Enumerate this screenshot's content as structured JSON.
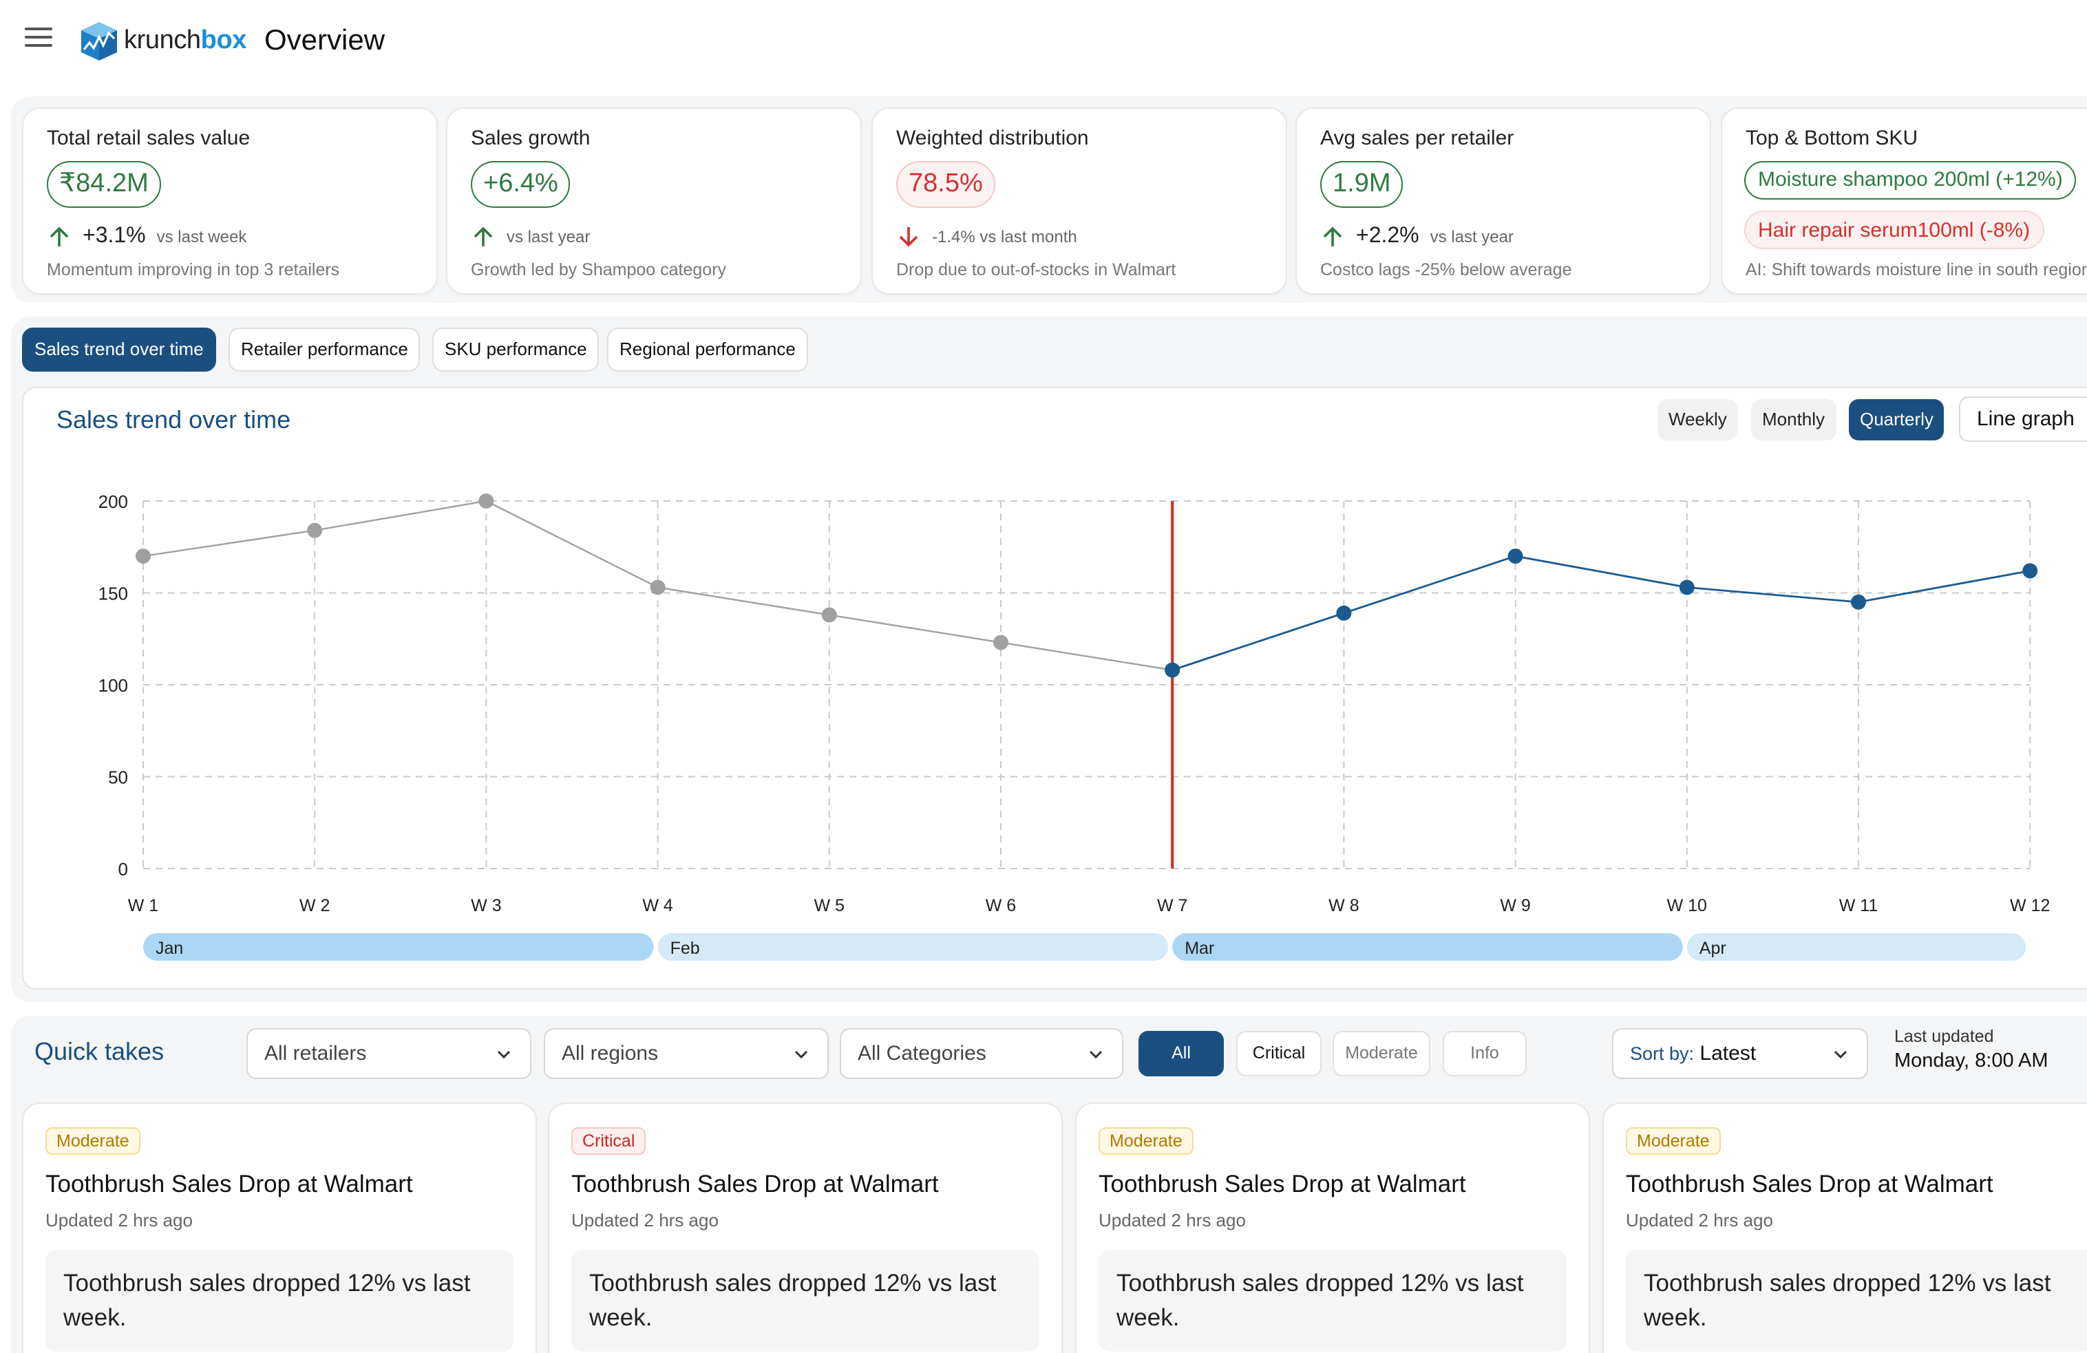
{
  "app": {
    "brand_part1": "krunch",
    "brand_part2": "box",
    "page_title": "Overview"
  },
  "colors": {
    "primary": "#1a4f80",
    "brand_blue": "#1b8fd6",
    "positive": "#2f7a40",
    "negative": "#d2322d",
    "series_past": "#a0a0a0",
    "series_current": "#1a5a8e",
    "marker_line": "#d22a22"
  },
  "kpis": {
    "total": {
      "label": "Total retail sales value",
      "value": "₹84.2M",
      "delta": "+3.1%",
      "delta_label": "vs last week",
      "note": "Momentum improving in top 3 retailers",
      "direction": "up"
    },
    "growth": {
      "label": "Sales growth",
      "value": "+6.4%",
      "delta_label": "vs last year",
      "note": "Growth led by Shampoo category",
      "direction": "up"
    },
    "distribution": {
      "label": "Weighted distribution",
      "value": "78.5%",
      "delta_label": "-1.4% vs last month",
      "note": "Drop due to out-of-stocks in Walmart",
      "direction": "down"
    },
    "avg": {
      "label": "Avg sales per retailer",
      "value": "1.9M",
      "delta": "+2.2%",
      "delta_label": "vs last year",
      "note": "Costco lags -25% below average",
      "direction": "up"
    },
    "sku": {
      "label": "Top & Bottom SKU",
      "top": "Moisture shampoo 200ml (+12%)",
      "bottom": "Hair repair serum100ml (-8%)",
      "note": "AI: Shift towards moisture line in south region"
    }
  },
  "tabs": {
    "sales_trend": "Sales trend over time",
    "retailer": "Retailer performance",
    "sku": "SKU performance",
    "regional": "Regional performance"
  },
  "chart_panel": {
    "title": "Sales trend over time",
    "periods": {
      "weekly": "Weekly",
      "monthly": "Monthly",
      "quarterly": "Quarterly",
      "selected": "Quarterly"
    },
    "chart_type_label": "Line graph"
  },
  "chart_data": {
    "type": "line",
    "x": [
      "W 1",
      "W 2",
      "W 3",
      "W 4",
      "W 5",
      "W 6",
      "W 7",
      "W 8",
      "W 9",
      "W 10",
      "W 11",
      "W 12"
    ],
    "series": [
      {
        "points": [
          [
            0,
            170
          ],
          [
            1,
            184
          ],
          [
            2,
            200
          ],
          [
            3,
            153
          ],
          [
            4,
            138
          ],
          [
            5,
            123
          ],
          [
            6,
            108
          ]
        ],
        "color": "#a0a0a0"
      },
      {
        "points": [
          [
            6,
            108
          ],
          [
            7,
            139
          ],
          [
            8,
            170
          ],
          [
            9,
            153
          ],
          [
            10,
            145
          ],
          [
            11,
            162
          ]
        ],
        "color": "#1a5a8e"
      }
    ],
    "marker_at": "W 7",
    "yticks": [
      0,
      50,
      100,
      150,
      200
    ],
    "ylim": [
      0,
      200
    ],
    "grid": true,
    "months": [
      {
        "label": "Jan",
        "from": 0,
        "to": 3
      },
      {
        "label": "Feb",
        "from": 3,
        "to": 6
      },
      {
        "label": "Mar",
        "from": 6,
        "to": 9
      },
      {
        "label": "Apr",
        "from": 9,
        "to": 11
      }
    ]
  },
  "quick_takes": {
    "title": "Quick takes",
    "filters": {
      "retailers": "All retailers",
      "regions": "All regions",
      "categories": "All Categories"
    },
    "severity": {
      "all": "All",
      "critical": "Critical",
      "moderate": "Moderate",
      "info": "Info"
    },
    "sort": {
      "label": "Sort by:",
      "value": "Latest"
    },
    "updated": {
      "label": "Last updated",
      "value": "Monday, 8:00 AM"
    },
    "cards": [
      {
        "badge": "Moderate",
        "title": "Toothbrush Sales Drop at Walmart",
        "updated": "Updated 2 hrs ago",
        "body": "Toothbrush sales dropped 12% vs last week."
      },
      {
        "badge": "Critical",
        "title": "Toothbrush Sales Drop at Walmart",
        "updated": "Updated 2 hrs ago",
        "body": "Toothbrush sales dropped 12% vs last week."
      },
      {
        "badge": "Moderate",
        "title": "Toothbrush Sales Drop at Walmart",
        "updated": "Updated 2 hrs ago",
        "body": "Toothbrush sales dropped 12% vs last week."
      },
      {
        "badge": "Moderate",
        "title": "Toothbrush Sales Drop at Walmart",
        "updated": "Updated 2 hrs ago",
        "body": "Toothbrush sales dropped 12% vs last week."
      }
    ]
  }
}
